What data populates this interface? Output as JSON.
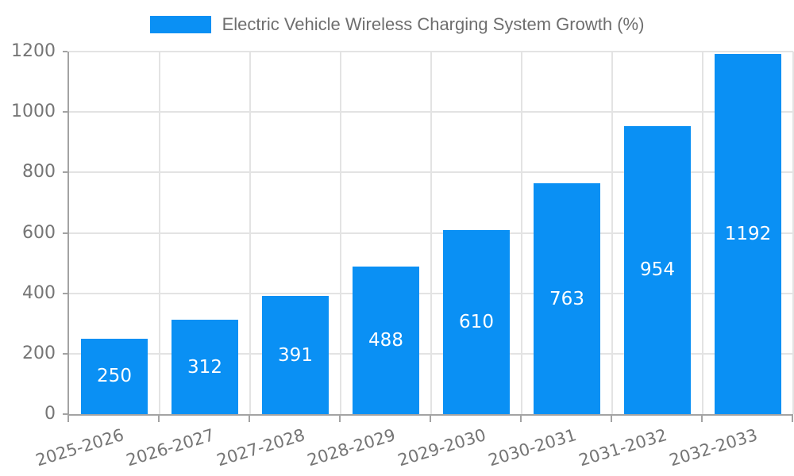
{
  "legend": {
    "label": "Electric Vehicle Wireless Charging System Growth (%)",
    "swatch_color": "#0a90f4"
  },
  "chart_data": {
    "type": "bar",
    "title": "Electric Vehicle Wireless Charging System Growth (%)",
    "categories": [
      "2025-2026",
      "2026-2027",
      "2027-2028",
      "2028-2029",
      "2029-2030",
      "2030-2031",
      "2031-2032",
      "2032-2033"
    ],
    "values": [
      250,
      312,
      391,
      488,
      610,
      763,
      954,
      1192
    ],
    "value_labels": [
      "250",
      "312",
      "391",
      "488",
      "610",
      "763",
      "954",
      "1192"
    ],
    "value_labels_inside_bars": true,
    "xlabel": "",
    "ylabel": "",
    "ylim": [
      0,
      1200
    ],
    "yticks": [
      0,
      200,
      400,
      600,
      800,
      1000,
      1200
    ],
    "grid": true,
    "legend_position": "top",
    "x_tick_rotation_deg": -17,
    "colors": {
      "bar": "#0a90f4",
      "value_label": "#ffffff",
      "gridline": "#e3e3e3",
      "axis_line": "#a3a3a3",
      "tick_mark": "#a3a3a3",
      "tick_label": "#757575",
      "legend_text": "#6e6e6e",
      "background": "#ffffff"
    }
  }
}
